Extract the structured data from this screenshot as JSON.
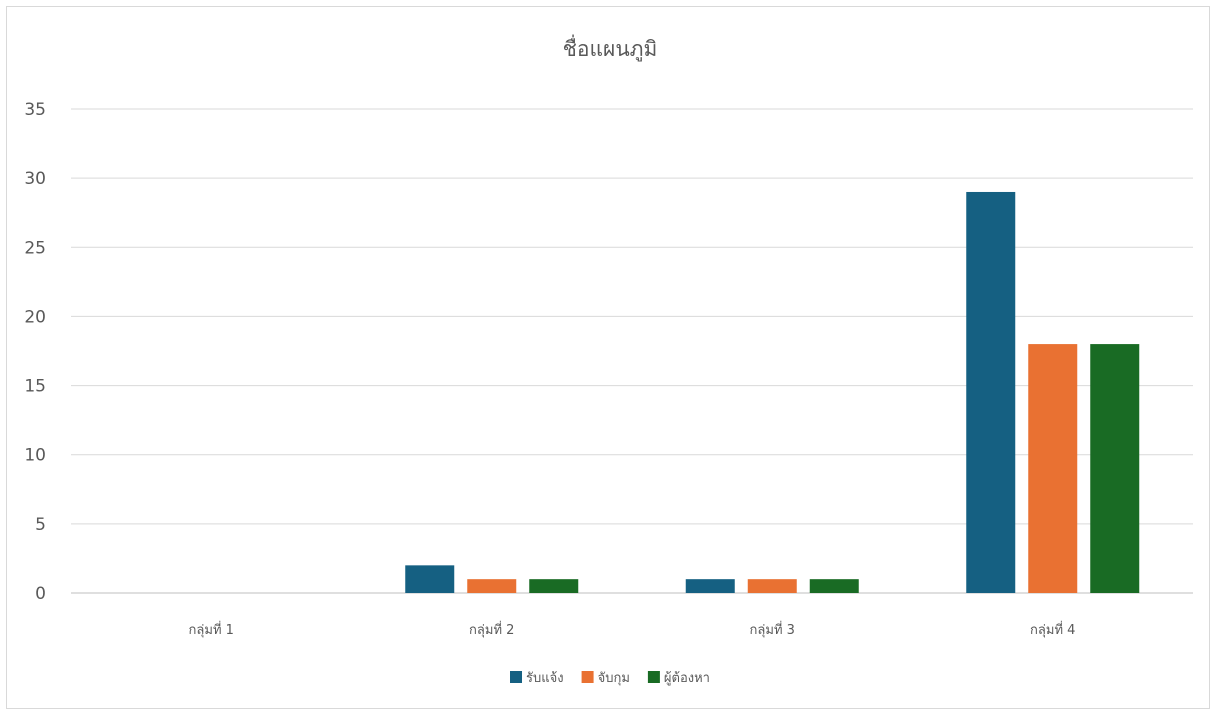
{
  "chart_data": {
    "type": "bar",
    "title": "ชื่อแผนภูมิ",
    "categories": [
      "กลุ่มที่ 1",
      "กลุ่มที่ 2",
      "กลุ่มที่ 3",
      "กลุ่มที่ 4"
    ],
    "series": [
      {
        "name": "รับแจ้ง",
        "color": "#156082",
        "values": [
          0,
          2,
          1,
          29
        ]
      },
      {
        "name": "จับกุม",
        "color": "#E97132",
        "values": [
          0,
          1,
          1,
          18
        ]
      },
      {
        "name": "ผู้ต้องหา",
        "color": "#196B24",
        "values": [
          0,
          1,
          1,
          18
        ]
      }
    ],
    "ylim": [
      0,
      35
    ],
    "yticks": [
      0,
      5,
      10,
      15,
      20,
      25,
      30,
      35
    ],
    "grid": true,
    "legend": "bottom"
  }
}
